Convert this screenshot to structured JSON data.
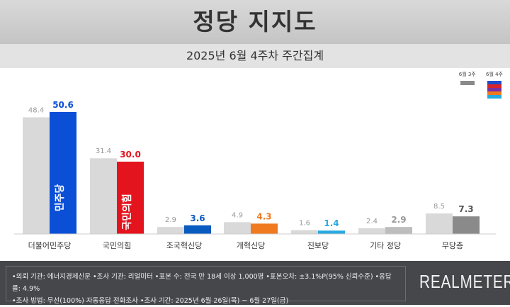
{
  "header": {
    "title": "정당 지지도",
    "subtitle": "2025년 6월 4주차 주간집계"
  },
  "legend": {
    "prev": "6월 3주",
    "curr": "6월 4주"
  },
  "chart_data": {
    "type": "bar",
    "categories": [
      "더불어민주당",
      "국민의힘",
      "조국혁신당",
      "개혁신당",
      "진보당",
      "기타 정당",
      "무당층"
    ],
    "series": [
      {
        "name": "6월 3주",
        "values": [
          48.4,
          31.4,
          2.9,
          4.9,
          1.6,
          2.4,
          8.5
        ],
        "color": "#d9d9d9"
      },
      {
        "name": "6월 4주",
        "values": [
          50.6,
          30.0,
          3.6,
          4.3,
          1.4,
          2.9,
          7.3
        ],
        "colors": [
          "#0a4fd6",
          "#e4141e",
          "#0a5bbf",
          "#f07a1f",
          "#27a9e1",
          "#bdbdbd",
          "#8a8a8a"
        ],
        "label_colors": [
          "#0a4fd6",
          "#e4141e",
          "#0a5bbf",
          "#f07a1f",
          "#27a9e1",
          "#9a9a9a",
          "#555555"
        ]
      }
    ],
    "bar_logos": [
      "민주당",
      "국민의힘"
    ],
    "ylim": [
      0,
      55
    ],
    "grid": false,
    "legend": "top-right"
  },
  "footer": {
    "line1": "•의뢰 기관: 에너지경제신문   •조사 기관: 리얼미터 •표본 수: 전국 만 18세 이상 1,000명 •표본오차: ±3.1%P(95% 신뢰수준) •응답률: 4.9%",
    "line2": "•조사 방법: 무선(100%) 자동응답 전화조사 •조사 기간: 2025년 6월 26일(목) ~ 6월 27일(금)",
    "logo": "REALMETER"
  }
}
